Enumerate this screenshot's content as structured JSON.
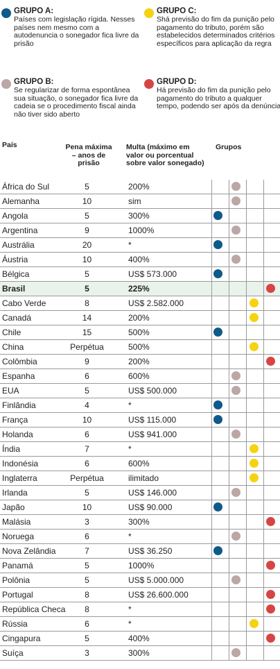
{
  "colors": {
    "A": "#0e5a8a",
    "B": "#bca6a6",
    "C": "#f5d312",
    "D": "#d64545"
  },
  "legend": [
    {
      "key": "A",
      "title": "GRUPO A:",
      "text": "Países com legislação rígida. Nesses países nem mesmo com a autodenuncia o sonegador fica livre da prisão"
    },
    {
      "key": "C",
      "title": "GRUPO C:",
      "text": "Shá previsão do fim da punição pelo pagamento do tributo, porém são estabelecidos determinados critérios específicos para aplicação da regra"
    },
    {
      "key": "B",
      "title": "GRUPO B:",
      "text": "Se regularizar de forma espontânea sua situação, o sonegador fica livre da cadeia se o procedimento fiscal ainda não tiver sido aberto"
    },
    {
      "key": "D",
      "title": "GRUPO D:",
      "text": "Há previsão do fim da punição pelo pagamento do tributo a qualquer tempo, podendo ser após da denúncia"
    }
  ],
  "headers": {
    "country": "País",
    "years": "Pena máxima – anos de prisão",
    "fine": "Multa (máximo em valor ou porcentual sobre valor sonegado)",
    "groups": "Grupos"
  },
  "chart_data": {
    "type": "table",
    "columns": [
      "País",
      "Pena máxima – anos de prisão",
      "Multa (máximo em valor ou porcentual sobre valor sonegado)",
      "Grupos"
    ],
    "rows": [
      {
        "country": "África do Sul",
        "years": "5",
        "fine": "200%",
        "group": "B"
      },
      {
        "country": "Alemanha",
        "years": "10",
        "fine": "sim",
        "group": "B"
      },
      {
        "country": "Angola",
        "years": "5",
        "fine": "300%",
        "group": "A"
      },
      {
        "country": "Argentina",
        "years": "9",
        "fine": "1000%",
        "group": "B"
      },
      {
        "country": "Austrália",
        "years": "20",
        "fine": "*",
        "group": "A"
      },
      {
        "country": "Áustria",
        "years": "10",
        "fine": "400%",
        "group": "B"
      },
      {
        "country": "Bélgica",
        "years": "5",
        "fine": "US$ 573.000",
        "group": "A"
      },
      {
        "country": "Brasil",
        "years": "5",
        "fine": "225%",
        "group": "D",
        "highlight": true
      },
      {
        "country": "Cabo Verde",
        "years": "8",
        "fine": "US$ 2.582.000",
        "group": "C"
      },
      {
        "country": "Canadá",
        "years": "14",
        "fine": "200%",
        "group": "C"
      },
      {
        "country": "Chile",
        "years": "15",
        "fine": "500%",
        "group": "A"
      },
      {
        "country": "China",
        "years": "Perpétua",
        "fine": "500%",
        "group": "C"
      },
      {
        "country": "Colômbia",
        "years": "9",
        "fine": "200%",
        "group": "D"
      },
      {
        "country": "Espanha",
        "years": "6",
        "fine": "600%",
        "group": "B"
      },
      {
        "country": "EUA",
        "years": "5",
        "fine": "US$ 500.000",
        "group": "B"
      },
      {
        "country": "Finlândia",
        "years": "4",
        "fine": "*",
        "group": "A"
      },
      {
        "country": "França",
        "years": "10",
        "fine": "US$ 115.000",
        "group": "A"
      },
      {
        "country": "Holanda",
        "years": "6",
        "fine": "US$ 941.000",
        "group": "B"
      },
      {
        "country": "Índia",
        "years": "7",
        "fine": "*",
        "group": "C"
      },
      {
        "country": "Indonésia",
        "years": "6",
        "fine": "600%",
        "group": "C"
      },
      {
        "country": "Inglaterra",
        "years": "Perpétua",
        "fine": "ilimitado",
        "group": "C"
      },
      {
        "country": "Irlanda",
        "years": "5",
        "fine": "US$ 146.000",
        "group": "B"
      },
      {
        "country": "Japão",
        "years": "10",
        "fine": "US$ 90.000",
        "group": "A"
      },
      {
        "country": "Malásia",
        "years": "3",
        "fine": "300%",
        "group": "D"
      },
      {
        "country": "Noruega",
        "years": "6",
        "fine": "*",
        "group": "B"
      },
      {
        "country": "Nova Zelândia",
        "years": "7",
        "fine": "US$ 36.250",
        "group": "A"
      },
      {
        "country": "Panamá",
        "years": "5",
        "fine": "1000%",
        "group": "D"
      },
      {
        "country": "Polônia",
        "years": "5",
        "fine": "US$ 5.000.000",
        "group": "B"
      },
      {
        "country": "Portugal",
        "years": "8",
        "fine": "US$ 26.600.000",
        "group": "D"
      },
      {
        "country": "República Checa",
        "years": "8",
        "fine": "*",
        "group": "D"
      },
      {
        "country": "Rússia",
        "years": "6",
        "fine": "*",
        "group": "C"
      },
      {
        "country": "Cingapura",
        "years": "5",
        "fine": "400%",
        "group": "D"
      },
      {
        "country": "Suíça",
        "years": "3",
        "fine": "300%",
        "group": "B"
      }
    ]
  }
}
